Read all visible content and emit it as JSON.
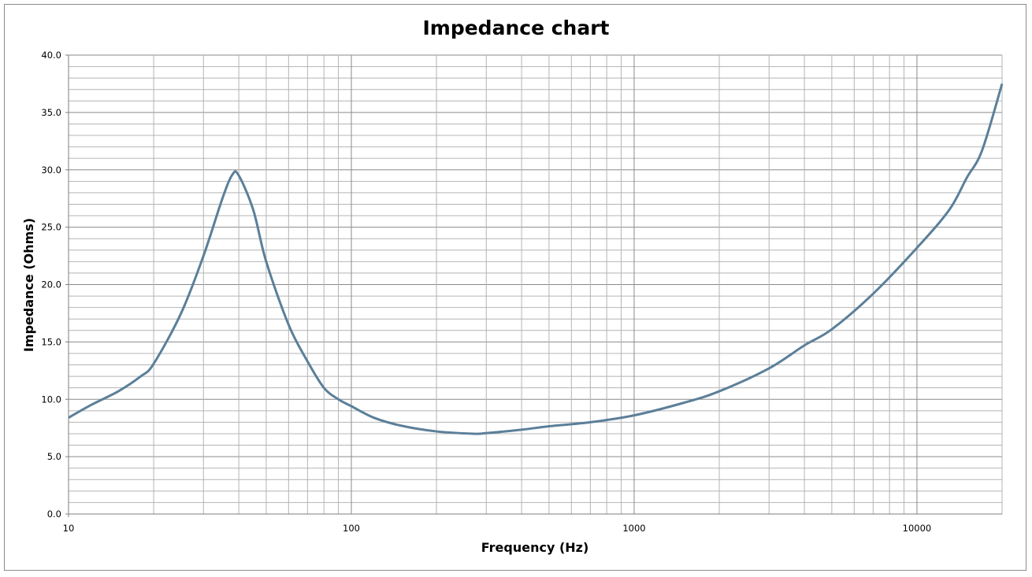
{
  "chart_data": {
    "type": "line",
    "title": "Impedance chart",
    "xlabel": "Frequency (Hz)",
    "ylabel": "Impedance (Ohms)",
    "xscale": "log",
    "xlim": [
      10,
      20000
    ],
    "ylim": [
      0,
      40
    ],
    "grid": true,
    "x_tick_labels": [
      "10",
      "100",
      "1000",
      "10000"
    ],
    "x_ticks": [
      10,
      100,
      1000,
      10000
    ],
    "y_tick_labels": [
      "0.0",
      "5.0",
      "10.0",
      "15.0",
      "20.0",
      "25.0",
      "30.0",
      "35.0",
      "40.0"
    ],
    "y_ticks": [
      0,
      5,
      10,
      15,
      20,
      25,
      30,
      35,
      40
    ],
    "line_color": "#5b7f99",
    "series": [
      {
        "name": "Impedance",
        "x": [
          10,
          12,
          15,
          18,
          20,
          25,
          30,
          35,
          38,
          40,
          45,
          50,
          60,
          70,
          80,
          90,
          100,
          120,
          150,
          200,
          270,
          300,
          400,
          500,
          700,
          1000,
          1500,
          2000,
          3000,
          4000,
          5000,
          7000,
          10000,
          13000,
          15000,
          17000,
          20000
        ],
        "y": [
          8.4,
          9.5,
          10.7,
          12.0,
          13.1,
          17.5,
          22.5,
          27.5,
          29.6,
          29.5,
          26.5,
          22.0,
          16.5,
          13.3,
          11.0,
          10.0,
          9.4,
          8.4,
          7.7,
          7.2,
          7.0,
          7.05,
          7.35,
          7.65,
          8.0,
          8.6,
          9.7,
          10.7,
          12.7,
          14.7,
          16.1,
          19.2,
          23.2,
          26.5,
          29.3,
          31.7,
          37.5
        ]
      }
    ]
  }
}
